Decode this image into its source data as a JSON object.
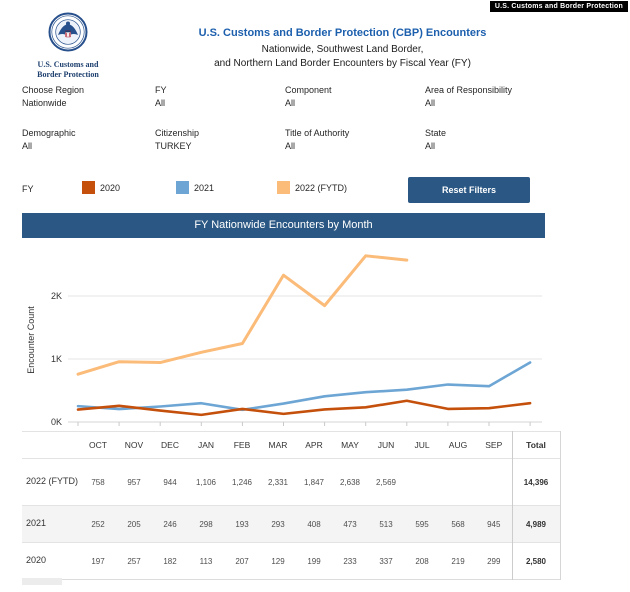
{
  "window_badge": "U.S. Customs and Border Protection",
  "header": {
    "logo_caption_line1": "U.S. Customs and",
    "logo_caption_line2": "Border Protection",
    "title": "U.S. Customs and Border Protection (CBP) Encounters",
    "subtitle_line1": "Nationwide, Southwest Land Border,",
    "subtitle_line2": "and Northern Land Border Encounters by Fiscal Year (FY)"
  },
  "filters": [
    {
      "label": "Choose Region",
      "value": "Nationwide"
    },
    {
      "label": "FY",
      "value": "All"
    },
    {
      "label": "Component",
      "value": "All"
    },
    {
      "label": "Area of Responsibility",
      "value": "All"
    },
    {
      "label": "Demographic",
      "value": "All"
    },
    {
      "label": "Citizenship",
      "value": "TURKEY"
    },
    {
      "label": "Title of Authority",
      "value": "All"
    },
    {
      "label": "State",
      "value": "All"
    }
  ],
  "legend": {
    "label": "FY",
    "items": [
      {
        "label": "2020",
        "color": "#c4500c"
      },
      {
        "label": "2021",
        "color": "#6da6d4"
      },
      {
        "label": "2022 (FYTD)",
        "color": "#fbbb79"
      }
    ]
  },
  "reset_button_label": "Reset Filters",
  "chart_title": "FY Nationwide Encounters by Month",
  "chart_data": {
    "type": "line",
    "title": "FY Nationwide Encounters by Month",
    "xlabel": "",
    "ylabel": "Encounter Count",
    "categories": [
      "OCT",
      "NOV",
      "DEC",
      "JAN",
      "FEB",
      "MAR",
      "APR",
      "MAY",
      "JUN",
      "JUL",
      "AUG",
      "SEP"
    ],
    "y_ticks": [
      "0K",
      "1K",
      "2K"
    ],
    "ylim": [
      0,
      2800
    ],
    "grid": true,
    "legend_position": "top",
    "series": [
      {
        "name": "2020",
        "color": "#c4500c",
        "values": [
          197,
          257,
          182,
          113,
          207,
          129,
          199,
          233,
          337,
          208,
          219,
          299
        ]
      },
      {
        "name": "2021",
        "color": "#6da6d4",
        "values": [
          252,
          205,
          246,
          298,
          193,
          293,
          408,
          473,
          513,
          595,
          568,
          945
        ]
      },
      {
        "name": "2022 (FYTD)",
        "color": "#fbbb79",
        "values": [
          758,
          957,
          944,
          1106,
          1246,
          2331,
          1847,
          2638,
          2569,
          null,
          null,
          null
        ]
      }
    ]
  },
  "table": {
    "columns": [
      "OCT",
      "NOV",
      "DEC",
      "JAN",
      "FEB",
      "MAR",
      "APR",
      "MAY",
      "JUN",
      "JUL",
      "AUG",
      "SEP"
    ],
    "total_label": "Total",
    "rows": [
      {
        "label": "2022 (FYTD)",
        "values": [
          "758",
          "957",
          "944",
          "1,106",
          "1,246",
          "2,331",
          "1,847",
          "2,638",
          "2,569",
          "",
          "",
          ""
        ],
        "total": "14,396"
      },
      {
        "label": "2021",
        "values": [
          "252",
          "205",
          "246",
          "298",
          "193",
          "293",
          "408",
          "473",
          "513",
          "595",
          "568",
          "945"
        ],
        "total": "4,989"
      },
      {
        "label": "2020",
        "values": [
          "197",
          "257",
          "182",
          "113",
          "207",
          "129",
          "199",
          "233",
          "337",
          "208",
          "219",
          "299"
        ],
        "total": "2,580"
      }
    ]
  }
}
